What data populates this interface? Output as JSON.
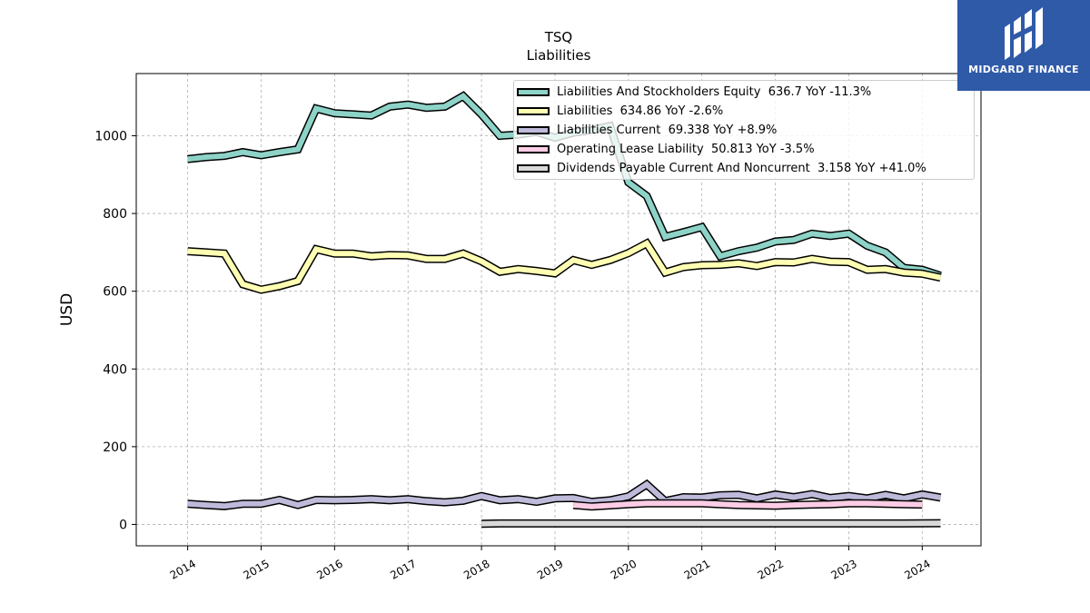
{
  "logo": {
    "text": "MIDGARD FINANCE",
    "background": "#2f5aa8"
  },
  "chart_data": {
    "type": "line",
    "title": "TSQ",
    "subtitle": "Liabilities",
    "ylabel": "USD",
    "xlabel": "",
    "ylim": [
      -55,
      1160
    ],
    "xlim": [
      2013.3,
      2024.8
    ],
    "yticks": [
      0,
      200,
      400,
      600,
      800,
      1000
    ],
    "xticks": [
      "2014",
      "2015",
      "2016",
      "2017",
      "2018",
      "2019",
      "2020",
      "2021",
      "2022",
      "2023",
      "2024"
    ],
    "grid": true,
    "legend_position": "top-right",
    "series": [
      {
        "name": "Liabilities And Stockholders Equity",
        "legend_label": "Liabilities And Stockholders Equity  636.7 YoY -11.3%",
        "color": "#8dd3c7",
        "x": [
          2014.0,
          2014.25,
          2014.5,
          2014.75,
          2015.0,
          2015.25,
          2015.5,
          2015.75,
          2016.0,
          2016.25,
          2016.5,
          2016.75,
          2017.0,
          2017.25,
          2017.5,
          2017.75,
          2018.0,
          2018.25,
          2018.5,
          2018.75,
          2019.0,
          2019.25,
          2019.5,
          2019.75,
          2020.0,
          2020.25,
          2020.5,
          2020.75,
          2021.0,
          2021.25,
          2021.5,
          2021.75,
          2022.0,
          2022.25,
          2022.5,
          2022.75,
          2023.0,
          2023.25,
          2023.5,
          2023.75,
          2024.0,
          2024.25
        ],
        "y": [
          940,
          945,
          948,
          958,
          950,
          958,
          965,
          1070,
          1058,
          1055,
          1052,
          1075,
          1080,
          1072,
          1075,
          1102,
          1055,
          1000,
          1003,
          1010,
          995,
          1008,
          1015,
          1025,
          880,
          845,
          740,
          752,
          765,
          690,
          703,
          712,
          728,
          732,
          748,
          742,
          748,
          717,
          700,
          660,
          655,
          640
        ]
      },
      {
        "name": "Liabilities",
        "legend_label": "Liabilities  634.86 YoY -2.6%",
        "color": "#ffffb3",
        "x": [
          2014.0,
          2014.25,
          2014.5,
          2014.75,
          2015.0,
          2015.25,
          2015.5,
          2015.75,
          2016.0,
          2016.25,
          2016.5,
          2016.75,
          2017.0,
          2017.25,
          2017.5,
          2017.75,
          2018.0,
          2018.25,
          2018.5,
          2018.75,
          2019.0,
          2019.25,
          2019.5,
          2019.75,
          2020.0,
          2020.25,
          2020.5,
          2020.75,
          2021.0,
          2021.25,
          2021.5,
          2021.75,
          2022.0,
          2022.25,
          2022.5,
          2022.75,
          2023.0,
          2023.25,
          2023.5,
          2023.75,
          2024.0,
          2024.25
        ],
        "y": [
          703,
          700,
          697,
          618,
          604,
          613,
          626,
          708,
          697,
          697,
          690,
          693,
          692,
          683,
          683,
          697,
          677,
          650,
          657,
          652,
          646,
          680,
          668,
          680,
          698,
          723,
          648,
          662,
          667,
          668,
          672,
          665,
          675,
          674,
          683,
          676,
          675,
          655,
          657,
          648,
          645,
          635
        ]
      },
      {
        "name": "Liabilities Current",
        "legend_label": "Liabilities Current  69.338 YoY +8.9%",
        "color": "#bebada",
        "x": [
          2014.0,
          2014.25,
          2014.5,
          2014.75,
          2015.0,
          2015.25,
          2015.5,
          2015.75,
          2016.0,
          2016.25,
          2016.5,
          2016.75,
          2017.0,
          2017.25,
          2017.5,
          2017.75,
          2018.0,
          2018.25,
          2018.5,
          2018.75,
          2019.0,
          2019.25,
          2019.5,
          2019.75,
          2020.0,
          2020.25,
          2020.5,
          2020.75,
          2021.0,
          2021.25,
          2021.5,
          2021.75,
          2022.0,
          2022.25,
          2022.5,
          2022.75,
          2023.0,
          2023.25,
          2023.5,
          2023.75,
          2024.0,
          2024.25
        ],
        "y": [
          53,
          50,
          47,
          53,
          53,
          63,
          50,
          63,
          62,
          63,
          65,
          62,
          65,
          60,
          57,
          61,
          73,
          62,
          65,
          58,
          67,
          68,
          58,
          62,
          72,
          103,
          60,
          70,
          69,
          75,
          76,
          67,
          77,
          70,
          78,
          68,
          73,
          67,
          76,
          67,
          77,
          69
        ]
      },
      {
        "name": "Operating Lease Liability",
        "legend_label": "Operating Lease Liability  50.813 YoY -3.5%",
        "color": "#fccde5",
        "x": [
          2019.25,
          2019.5,
          2019.75,
          2020.0,
          2020.25,
          2020.5,
          2020.75,
          2021.0,
          2021.25,
          2021.5,
          2021.75,
          2022.0,
          2022.25,
          2022.5,
          2022.75,
          2023.0,
          2023.25,
          2023.5,
          2023.75,
          2024.0
        ],
        "y": [
          50,
          46,
          49,
          52,
          54,
          54,
          54,
          54,
          52,
          50,
          49,
          48,
          50,
          51,
          52,
          54,
          54,
          53,
          52,
          51
        ]
      },
      {
        "name": "Dividends Payable Current And Noncurrent",
        "legend_label": "Dividends Payable Current And Noncurrent  3.158 YoY +41.0%",
        "color": "#d9d9d9",
        "x": [
          2018.0,
          2018.25,
          2018.5,
          2018.75,
          2019.0,
          2019.25,
          2019.5,
          2019.75,
          2020.0,
          2020.25,
          2020.5,
          2020.75,
          2021.0,
          2021.25,
          2021.5,
          2021.75,
          2022.0,
          2022.25,
          2022.5,
          2022.75,
          2023.0,
          2023.25,
          2023.5,
          2023.75,
          2024.0,
          2024.25
        ],
        "y": [
          1.5,
          2.5,
          2.5,
          2.5,
          2.5,
          2.5,
          2.5,
          2.5,
          2.5,
          2.5,
          2.5,
          2.5,
          2.5,
          2.5,
          2.5,
          2.5,
          2.5,
          2.5,
          2.5,
          2.5,
          2.5,
          2.5,
          2.5,
          2.5,
          3.0,
          3.2
        ]
      }
    ]
  }
}
